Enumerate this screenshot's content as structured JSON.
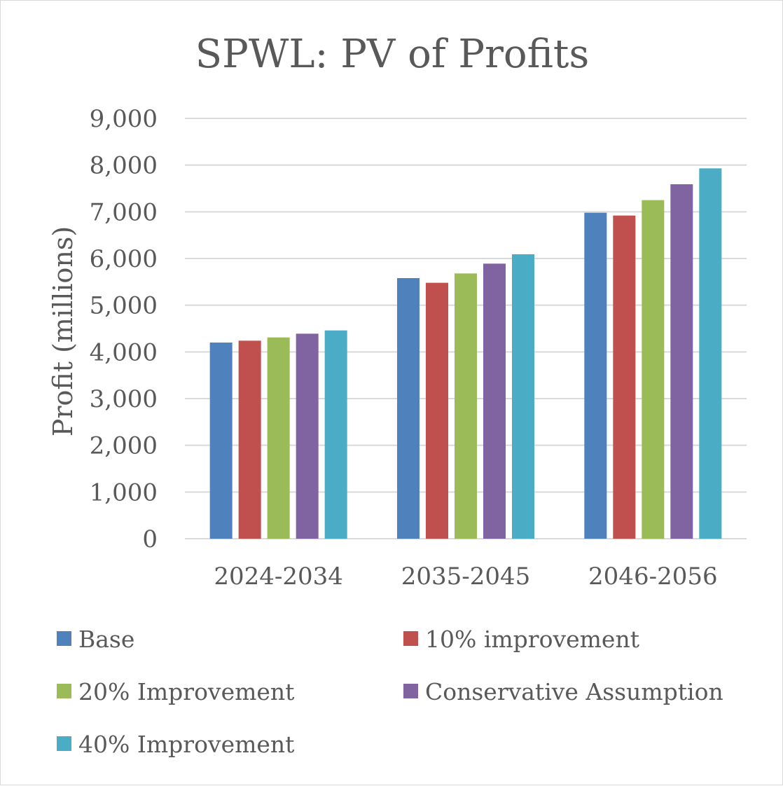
{
  "chart_data": {
    "type": "bar",
    "title": "SPWL: PV of Profits",
    "ylabel": "Profit (millions)",
    "xlabel": "",
    "categories": [
      "2024-2034",
      "2035-2045",
      "2046-2056"
    ],
    "ylim": [
      0,
      9000
    ],
    "yticks": [
      0,
      1000,
      2000,
      3000,
      4000,
      5000,
      6000,
      7000,
      8000,
      9000
    ],
    "ytick_labels": [
      "0",
      "1,000",
      "2,000",
      "3,000",
      "4,000",
      "5,000",
      "6,000",
      "7,000",
      "8,000",
      "9,000"
    ],
    "grid": true,
    "legend_position": "bottom",
    "series": [
      {
        "name": "Base",
        "color": "#4F81BD",
        "values": [
          4200,
          5580,
          6980
        ]
      },
      {
        "name": "10% improvement",
        "color": "#C0504D",
        "values": [
          4240,
          5480,
          6920
        ]
      },
      {
        "name": "20% Improvement",
        "color": "#9BBB59",
        "values": [
          4310,
          5680,
          7250
        ]
      },
      {
        "name": "Conservative Assumption",
        "color": "#8064A2",
        "values": [
          4390,
          5890,
          7590
        ]
      },
      {
        "name": "40% Improvement",
        "color": "#4BACC6",
        "values": [
          4460,
          6090,
          7930
        ]
      }
    ]
  }
}
